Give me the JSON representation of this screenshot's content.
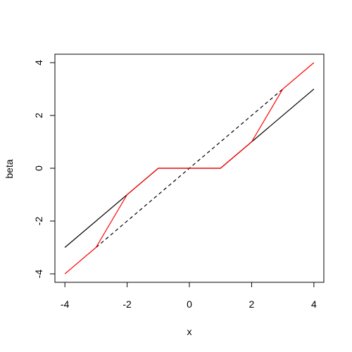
{
  "chart_data": {
    "type": "line",
    "x_label": "x",
    "y_label": "beta",
    "xlim": [
      -4.32,
      4.32
    ],
    "ylim": [
      -4.32,
      4.32
    ],
    "xticks": [
      -4,
      -2,
      0,
      2,
      4
    ],
    "yticks": [
      -4,
      -2,
      0,
      2,
      4
    ],
    "series": [
      {
        "color": "#000000",
        "dash": false,
        "x": [
          -4,
          -1,
          1,
          4
        ],
        "values": [
          -3,
          0,
          0,
          3
        ]
      },
      {
        "color": "#000000",
        "dash": true,
        "x": [
          -3,
          3
        ],
        "values": [
          -3,
          3
        ]
      },
      {
        "color": "#ff0000",
        "dash": false,
        "x": [
          -4,
          -3,
          -2,
          -1,
          1,
          2,
          3,
          4
        ],
        "values": [
          -4,
          -3,
          -1,
          0,
          0,
          1,
          3,
          4
        ]
      }
    ]
  }
}
